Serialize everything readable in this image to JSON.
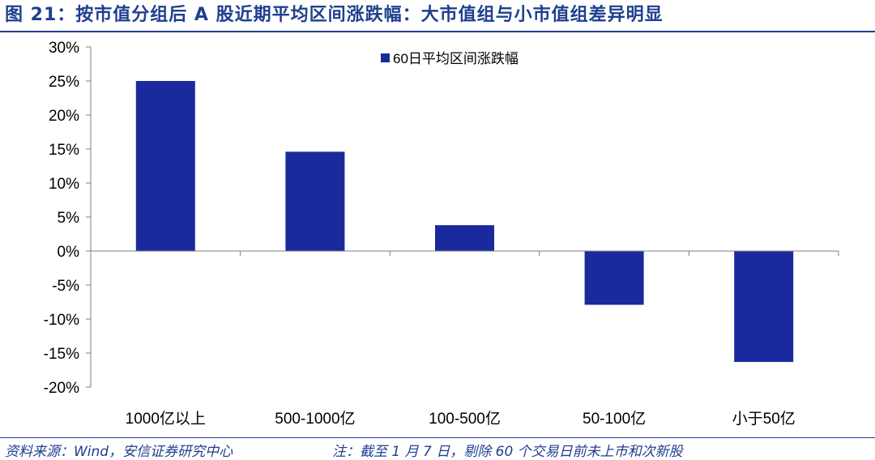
{
  "figure": {
    "title": "图 21：按市值分组后 A 股近期平均区间涨跌幅：大市值组与小市值组差异明显",
    "source": "资料来源：Wind，安信证券研究中心",
    "note": "注：截至 1 月 7 日，剔除 60 个交易日前未上市和次新股"
  },
  "colors": {
    "bar": "#1a2a9c",
    "accent": "#1f3f8f",
    "axis": "#7f7f7f"
  },
  "chart_data": {
    "type": "bar",
    "categories": [
      "1000亿以上",
      "500-1000亿",
      "100-500亿",
      "50-100亿",
      "小于50亿"
    ],
    "series": [
      {
        "name": "60日平均区间涨跌幅",
        "values": [
          25.0,
          14.6,
          3.8,
          -7.9,
          -16.3
        ]
      }
    ],
    "ylim": [
      -20,
      30
    ],
    "yticks": [
      30,
      25,
      20,
      15,
      10,
      5,
      0,
      -5,
      -10,
      -15,
      -20
    ],
    "ytick_labels": [
      "30%",
      "25%",
      "20%",
      "15%",
      "10%",
      "5%",
      "0%",
      "-5%",
      "-10%",
      "-15%",
      "-20%"
    ],
    "legend": "top-center",
    "grid": false
  }
}
